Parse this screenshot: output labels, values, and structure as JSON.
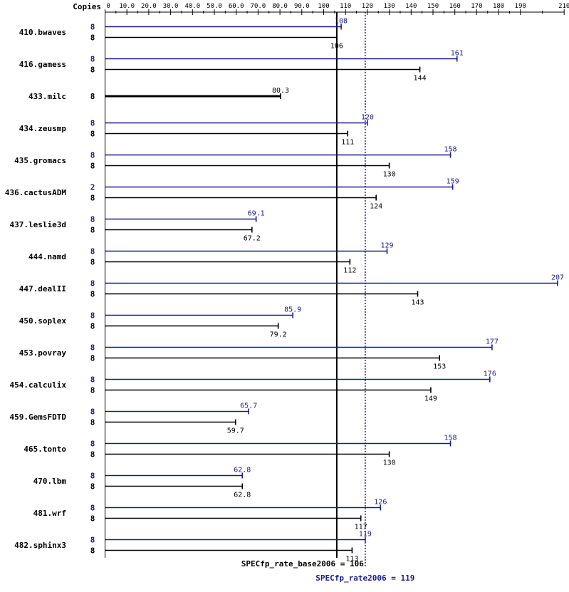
{
  "header": {
    "copies_label": "Copies"
  },
  "chart_data": {
    "type": "bar",
    "orientation": "horizontal",
    "xlim": [
      0,
      210
    ],
    "ticks": [
      0,
      10,
      20,
      30,
      40,
      50,
      60,
      70,
      80,
      90,
      100,
      110,
      120,
      130,
      140,
      150,
      160,
      170,
      180,
      190,
      210
    ],
    "tick_labels": [
      "0",
      "10.0",
      "20.0",
      "30.0",
      "40.0",
      "50.0",
      "60.0",
      "70.0",
      "80.0",
      "90.0",
      "100",
      "110",
      "120",
      "130",
      "140",
      "150",
      "160",
      "170",
      "180",
      "190",
      "210"
    ],
    "categories": [
      "410.bwaves",
      "416.gamess",
      "433.milc",
      "434.zeusmp",
      "435.gromacs",
      "436.cactusADM",
      "437.leslie3d",
      "444.namd",
      "447.dealII",
      "450.soplex",
      "453.povray",
      "454.calculix",
      "459.GemsFDTD",
      "465.tonto",
      "470.lbm",
      "481.wrf",
      "482.sphinx3"
    ],
    "series": [
      {
        "name": "SPECfp_rate2006",
        "color": "#1a1a8c",
        "copies": [
          "8",
          "8",
          "",
          "8",
          "8",
          "2",
          "8",
          "8",
          "8",
          "8",
          "8",
          "8",
          "8",
          "8",
          "8",
          "8",
          "8"
        ],
        "values": [
          108,
          161,
          null,
          120,
          158,
          159,
          69.1,
          129,
          207,
          85.9,
          177,
          176,
          65.7,
          158,
          62.8,
          126,
          119
        ],
        "labels": [
          "108",
          "161",
          "",
          "120",
          "158",
          "159",
          "69.1",
          "129",
          "207",
          "85.9",
          "177",
          "176",
          "65.7",
          "158",
          "62.8",
          "126",
          "119"
        ]
      },
      {
        "name": "SPECfp_rate_base2006",
        "color": "#000000",
        "copies": [
          "8",
          "8",
          "8",
          "8",
          "8",
          "8",
          "8",
          "8",
          "8",
          "8",
          "8",
          "8",
          "8",
          "8",
          "8",
          "8",
          "8"
        ],
        "values": [
          106,
          144,
          80.3,
          111,
          130,
          124,
          67.2,
          112,
          143,
          79.2,
          153,
          149,
          59.7,
          130,
          62.8,
          117,
          113
        ],
        "labels": [
          "106",
          "144",
          "80.3",
          "111",
          "130",
          "124",
          "67.2",
          "112",
          "143",
          "79.2",
          "153",
          "149",
          "59.7",
          "130",
          "62.8",
          "117",
          "113"
        ]
      }
    ],
    "reference_lines": [
      {
        "name": "base-mean",
        "value": 106,
        "label": "SPECfp_rate_base2006 = 106",
        "color": "#000000",
        "style": "solid"
      },
      {
        "name": "peak-mean",
        "value": 119,
        "label": "SPECfp_rate2006 = 119",
        "color": "#1a1a8c",
        "style": "dotted"
      }
    ]
  }
}
